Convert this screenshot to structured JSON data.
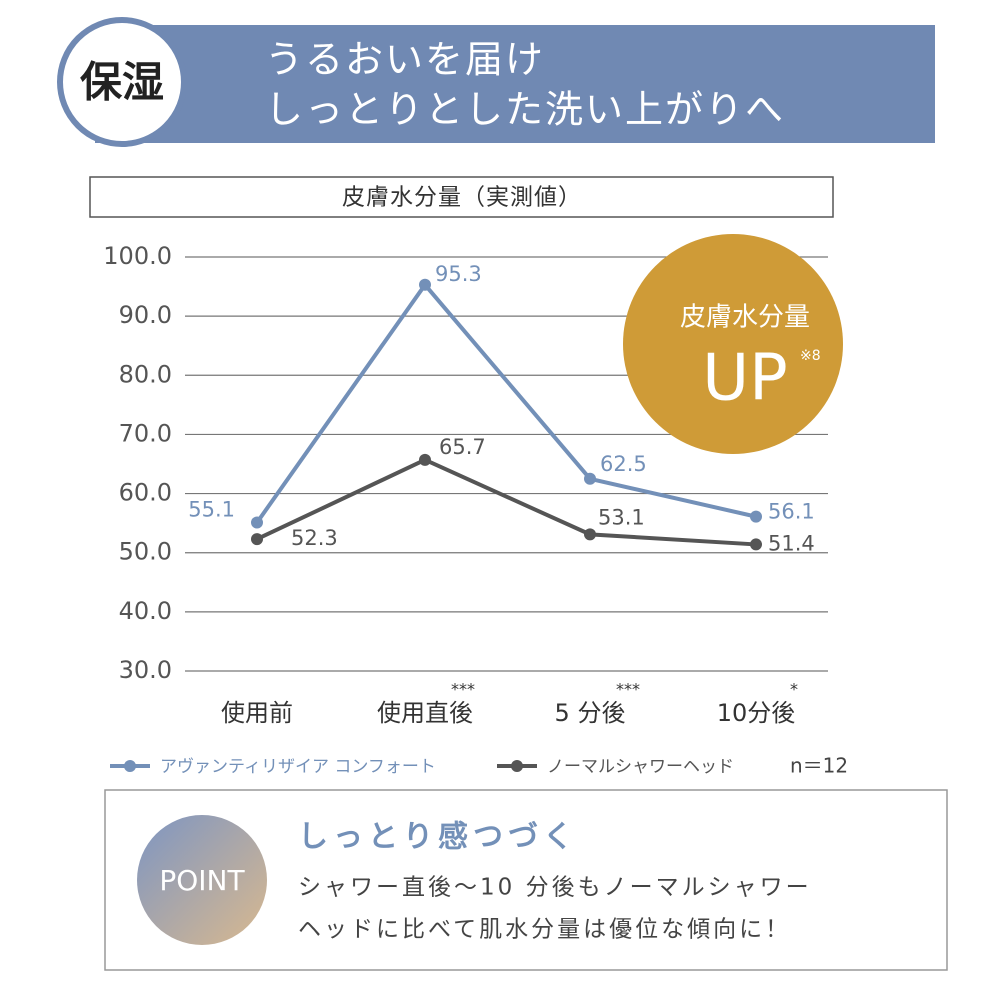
{
  "header": {
    "badge": "保湿",
    "title_lines": [
      "うるおいを届け",
      "しっとりとした洗い上がりへ"
    ]
  },
  "chart_data": {
    "type": "line",
    "title": "皮膚水分量（実測値）",
    "categories": [
      "使用前",
      "使用直後",
      "5 分後",
      "10分後"
    ],
    "significance": [
      null,
      "***",
      "***",
      "*"
    ],
    "series": [
      {
        "name": "アヴァンティリザイア コンフォート",
        "color": "#7390b8",
        "values": [
          55.1,
          95.3,
          62.5,
          56.1
        ]
      },
      {
        "name": "ノーマルシャワーヘッド",
        "color": "#555555",
        "values": [
          52.3,
          65.7,
          53.1,
          51.4
        ]
      }
    ],
    "ylim": [
      30,
      100
    ],
    "yticks": [
      {
        "value": 30,
        "label": "30.0"
      },
      {
        "value": 40,
        "label": "40.0"
      },
      {
        "value": 50,
        "label": "50.0"
      },
      {
        "value": 60,
        "label": "60.0"
      },
      {
        "value": 70,
        "label": "70.0"
      },
      {
        "value": 80,
        "label": "80.0"
      },
      {
        "value": 90,
        "label": "90.0"
      },
      {
        "value": 100,
        "label": "100.0"
      }
    ],
    "grid": true,
    "sample_size": "n＝12",
    "badge": {
      "text": "皮膚水分量",
      "big": "UP",
      "note": "※8",
      "color": "#cf9b37"
    }
  },
  "point": {
    "badge": "POINT",
    "heading": "しっとり感つづく",
    "lines": [
      "シャワー直後〜10 分後もノーマルシャワー",
      "ヘッドに比べて肌水分量は優位な傾向に！"
    ]
  }
}
